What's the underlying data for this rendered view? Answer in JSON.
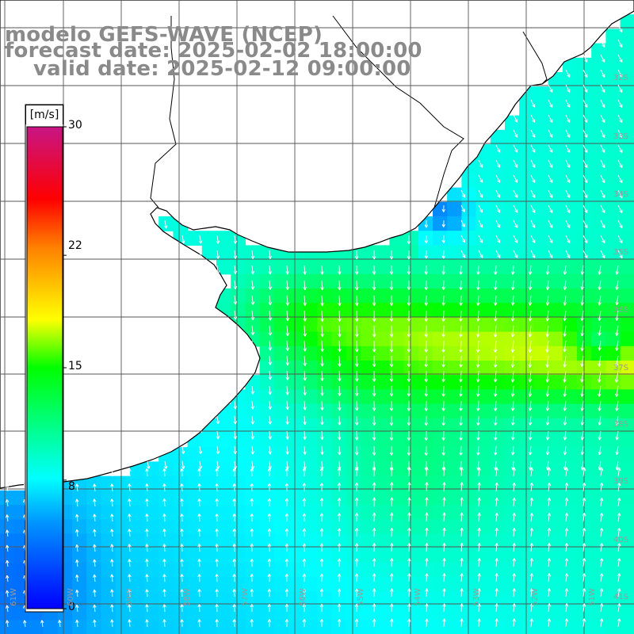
{
  "title": {
    "model": "modelo GEFS-WAVE (NCEP)",
    "forecast": "forecast date: 2025-02-02 18:00:00",
    "valid": "valid date: 2025-02-12 09:00:00"
  },
  "colorbar": {
    "unit": "[m/s]",
    "ticks": [
      "30",
      "22",
      "15",
      "8",
      "0"
    ],
    "tick_values": [
      30,
      22,
      15,
      8,
      0
    ],
    "range": [
      0,
      30
    ],
    "stops": [
      "#0000ff",
      "#0096ff",
      "#00ffff",
      "#00ff00",
      "#ffff00",
      "#ff8000",
      "#ff0000",
      "#c71585"
    ]
  },
  "map": {
    "land_color": "#ffffff",
    "coast_color": "#000000",
    "grid_color": "#555555",
    "lat_labels": [
      "32S",
      "33S",
      "34S",
      "35S",
      "36S",
      "37S",
      "38S",
      "39S",
      "40S",
      "41S"
    ],
    "lon_labels": [
      "61W",
      "60W",
      "59W",
      "58W",
      "57W",
      "56W",
      "55W",
      "54W",
      "53W",
      "52W",
      "51W"
    ]
  }
}
